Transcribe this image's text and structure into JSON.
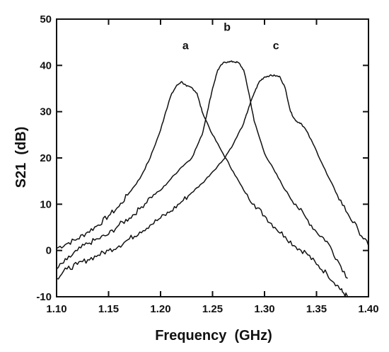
{
  "chart_data": {
    "type": "line",
    "title": "",
    "xlabel": "Frequency  (GHz)",
    "ylabel": "S21  (dB)",
    "xlim": [
      1.1,
      1.4
    ],
    "ylim": [
      -10,
      50
    ],
    "x_ticks": [
      1.1,
      1.15,
      1.2,
      1.25,
      1.3,
      1.35,
      1.4
    ],
    "x_tick_labels": [
      "1.10",
      "1.15",
      "1.20",
      "1.25",
      "1.30",
      "1.35",
      "1.40"
    ],
    "y_ticks": [
      -10,
      0,
      10,
      20,
      30,
      40,
      50
    ],
    "y_tick_labels": [
      "-10",
      "0",
      "10",
      "20",
      "30",
      "40",
      "50"
    ],
    "grid": false,
    "legend": "none",
    "series": [
      {
        "name": "a",
        "x": [
          1.1,
          1.11,
          1.12,
          1.13,
          1.14,
          1.15,
          1.16,
          1.17,
          1.18,
          1.19,
          1.2,
          1.205,
          1.21,
          1.215,
          1.22,
          1.225,
          1.23,
          1.235,
          1.24,
          1.25,
          1.26,
          1.27,
          1.28,
          1.29,
          1.3,
          1.31,
          1.32,
          1.33,
          1.34,
          1.35,
          1.36,
          1.37,
          1.375,
          1.38
        ],
        "y": [
          0.5,
          1.5,
          2.5,
          4.0,
          5.5,
          7.5,
          9.5,
          12.5,
          15.5,
          20.0,
          26.0,
          30.0,
          33.5,
          35.5,
          36.5,
          35.5,
          35.2,
          34.0,
          30.0,
          25.0,
          21.0,
          17.0,
          13.0,
          10.0,
          7.5,
          5.0,
          3.0,
          0.8,
          -0.5,
          -3.0,
          -5.0,
          -7.5,
          -9.0,
          -10.0
        ]
      },
      {
        "name": "b",
        "x": [
          1.1,
          1.11,
          1.12,
          1.13,
          1.14,
          1.15,
          1.16,
          1.17,
          1.18,
          1.19,
          1.2,
          1.21,
          1.22,
          1.23,
          1.24,
          1.245,
          1.25,
          1.255,
          1.26,
          1.265,
          1.27,
          1.275,
          1.28,
          1.285,
          1.29,
          1.3,
          1.31,
          1.32,
          1.33,
          1.34,
          1.35,
          1.36,
          1.37,
          1.38
        ],
        "y": [
          -4.0,
          -2.0,
          0.0,
          1.5,
          2.5,
          3.5,
          5.5,
          7.0,
          9.0,
          11.5,
          13.0,
          15.5,
          18.0,
          20.0,
          25.0,
          30.0,
          35.0,
          39.0,
          40.5,
          40.8,
          40.8,
          40.6,
          39.0,
          34.0,
          28.0,
          21.0,
          17.0,
          13.0,
          10.0,
          7.0,
          4.0,
          2.0,
          -2.0,
          -6.0
        ]
      },
      {
        "name": "c",
        "x": [
          1.1,
          1.11,
          1.12,
          1.13,
          1.14,
          1.15,
          1.16,
          1.17,
          1.18,
          1.19,
          1.2,
          1.21,
          1.22,
          1.23,
          1.24,
          1.25,
          1.26,
          1.27,
          1.28,
          1.285,
          1.29,
          1.295,
          1.3,
          1.305,
          1.31,
          1.315,
          1.32,
          1.325,
          1.33,
          1.335,
          1.34,
          1.35,
          1.36,
          1.37,
          1.38,
          1.39,
          1.4
        ],
        "y": [
          -6.0,
          -4.0,
          -3.0,
          -2.0,
          -1.0,
          0.0,
          1.0,
          2.5,
          4.0,
          5.5,
          7.0,
          8.5,
          10.5,
          12.5,
          14.5,
          17.0,
          19.5,
          23.0,
          27.5,
          31.0,
          34.0,
          36.5,
          37.5,
          37.8,
          37.8,
          37.5,
          35.0,
          30.0,
          28.0,
          27.5,
          26.0,
          21.5,
          16.5,
          12.0,
          8.0,
          4.5,
          1.0
        ]
      }
    ],
    "annotations": [
      {
        "text": "a",
        "x": 1.224,
        "y": 43.5
      },
      {
        "text": "b",
        "x": 1.264,
        "y": 47.5
      },
      {
        "text": "c",
        "x": 1.311,
        "y": 43.5
      }
    ]
  }
}
